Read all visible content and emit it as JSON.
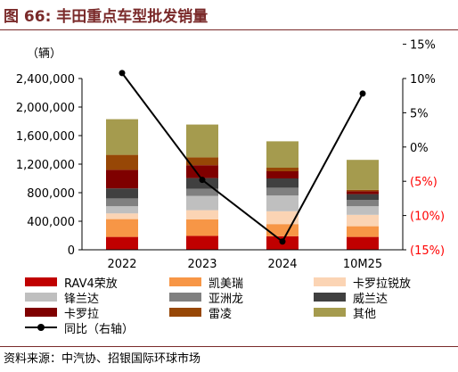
{
  "title": "图 66: 丰田重点车型批发销量",
  "source": "资料来源：中汽协、招银国际环球市场",
  "colors": {
    "title": "#7a2a2a",
    "negative_tick": "#ff0000"
  },
  "chart_data": {
    "type": "bar",
    "stacked": true,
    "title": "图 66: 丰田重点车型批发销量",
    "unit_label": "（辆）",
    "categories": [
      "2022",
      "2023",
      "2024",
      "10M25"
    ],
    "y_left": {
      "min": 0,
      "max": 2400000,
      "ticks": [
        "0",
        "400,000",
        "800,000",
        "1,200,000",
        "1,600,000",
        "2,000,000",
        "2,400,000"
      ],
      "tick_values": [
        0,
        400000,
        800000,
        1200000,
        1600000,
        2000000,
        2400000
      ]
    },
    "y_right": {
      "min": -15,
      "max": 10,
      "ticks": [
        "(15%)",
        "(10%)",
        "(5%)",
        "0%",
        "5%",
        "10%",
        "15%"
      ],
      "tick_values": [
        -15,
        -10,
        -5,
        0,
        5,
        10,
        15
      ],
      "negative_color": "#ff0000"
    },
    "series": [
      {
        "name": "RAV4荣放",
        "color": "#c00000",
        "values": [
          180000,
          195000,
          190000,
          180000
        ]
      },
      {
        "name": "凯美瑞",
        "color": "#f79646",
        "values": [
          250000,
          230000,
          170000,
          150000
        ]
      },
      {
        "name": "卡罗拉锐放",
        "color": "#fbd4b4",
        "values": [
          80000,
          130000,
          180000,
          160000
        ]
      },
      {
        "name": "锋兰达",
        "color": "#bfbfbf",
        "values": [
          100000,
          200000,
          220000,
          120000
        ]
      },
      {
        "name": "亚洲龙",
        "color": "#808080",
        "values": [
          110000,
          100000,
          110000,
          90000
        ]
      },
      {
        "name": "威兰达",
        "color": "#404040",
        "values": [
          140000,
          150000,
          130000,
          80000
        ]
      },
      {
        "name": "卡罗拉",
        "color": "#7f0000",
        "values": [
          260000,
          180000,
          100000,
          40000
        ]
      },
      {
        "name": "雷凌",
        "color": "#974706",
        "values": [
          210000,
          110000,
          50000,
          20000
        ]
      },
      {
        "name": "其他",
        "color": "#a59b4e",
        "values": [
          500000,
          460000,
          370000,
          420000
        ]
      }
    ],
    "line": {
      "name": "同比（右轴）",
      "color": "#000000",
      "values": [
        10.8,
        -4.8,
        -13.8,
        7.8
      ]
    },
    "legend_position": "bottom",
    "grid": false
  }
}
